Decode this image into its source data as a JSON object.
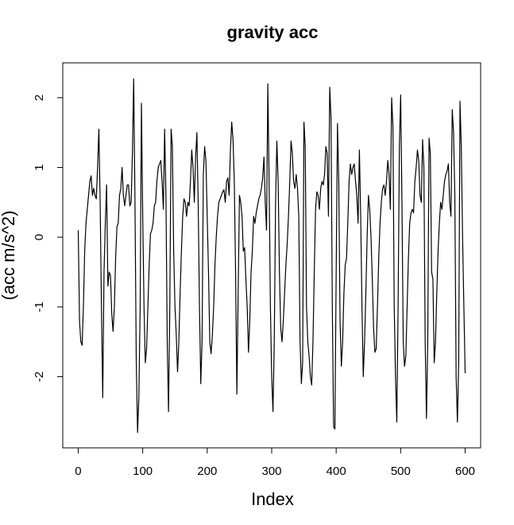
{
  "chart_data": {
    "type": "line",
    "title": "gravity acc",
    "xlabel": "Index",
    "ylabel": "(acc m/s^2)",
    "xlim": [
      -24,
      624
    ],
    "ylim": [
      -3.02,
      2.5
    ],
    "xticks": [
      0,
      100,
      200,
      300,
      400,
      500,
      600
    ],
    "yticks": [
      -2,
      -1,
      0,
      1,
      2
    ],
    "grid": false,
    "legend": "none",
    "line_color": "#000000",
    "series": [
      {
        "x": [
          0,
          2,
          4,
          6,
          8,
          10,
          12,
          15,
          18,
          20,
          22,
          24,
          26,
          28,
          30,
          32,
          34,
          36,
          38,
          40,
          42,
          44,
          46,
          48,
          50,
          52,
          54,
          56,
          58,
          60,
          62,
          64,
          66,
          68,
          70,
          72,
          74,
          76,
          78,
          80,
          82,
          84,
          86,
          88,
          90,
          92,
          94,
          96,
          98,
          100,
          102,
          104,
          106,
          108,
          110,
          112,
          114,
          116,
          118,
          120,
          122,
          124,
          126,
          128,
          130,
          132,
          134,
          136,
          138,
          140,
          142,
          144,
          146,
          148,
          150,
          152,
          154,
          156,
          158,
          160,
          162,
          164,
          166,
          168,
          170,
          172,
          174,
          176,
          178,
          180,
          182,
          184,
          186,
          188,
          190,
          192,
          194,
          196,
          198,
          200,
          202,
          204,
          206,
          208,
          210,
          212,
          214,
          216,
          218,
          220,
          222,
          224,
          226,
          228,
          230,
          232,
          234,
          236,
          238,
          240,
          242,
          244,
          246,
          248,
          250,
          252,
          254,
          256,
          258,
          260,
          262,
          264,
          266,
          268,
          270,
          272,
          274,
          276,
          278,
          280,
          282,
          284,
          286,
          288,
          290,
          292,
          294,
          296,
          298,
          300,
          302,
          304,
          306,
          308,
          310,
          312,
          314,
          316,
          318,
          320,
          322,
          324,
          326,
          328,
          330,
          332,
          334,
          336,
          338,
          340,
          342,
          344,
          346,
          348,
          350,
          352,
          354,
          356,
          358,
          360,
          362,
          364,
          366,
          368,
          370,
          372,
          374,
          376,
          378,
          380,
          382,
          384,
          386,
          388,
          390,
          392,
          394,
          396,
          398,
          400,
          402,
          404,
          406,
          408,
          410,
          412,
          414,
          416,
          418,
          420,
          422,
          424,
          426,
          428,
          430,
          432,
          434,
          436,
          438,
          440,
          442,
          444,
          446,
          448,
          450,
          452,
          454,
          456,
          458,
          460,
          462,
          464,
          466,
          468,
          470,
          472,
          474,
          476,
          478,
          480,
          482,
          484,
          486,
          488,
          490,
          492,
          494,
          496,
          498,
          500,
          502,
          504,
          506,
          508,
          510,
          512,
          514,
          516,
          518,
          520,
          522,
          524,
          526,
          528,
          530,
          532,
          534,
          536,
          538,
          540,
          542,
          544,
          546,
          548,
          550,
          552,
          554,
          556,
          558,
          560,
          562,
          564,
          566,
          568,
          570,
          572,
          574,
          576,
          578,
          580,
          582,
          584,
          586,
          588,
          590,
          592,
          594,
          596,
          598,
          600
        ],
        "y": [
          0.1,
          -1.2,
          -1.5,
          -1.55,
          -1.0,
          -0.2,
          0.2,
          0.5,
          0.8,
          0.88,
          0.6,
          0.7,
          0.6,
          0.55,
          1.0,
          1.55,
          0.5,
          -1.0,
          -2.3,
          -0.5,
          0.2,
          0.75,
          -0.7,
          -0.5,
          -0.55,
          -1.1,
          -1.35,
          -1.0,
          -0.3,
          0.15,
          0.2,
          0.6,
          0.7,
          1.0,
          0.6,
          0.45,
          0.6,
          0.75,
          0.75,
          0.45,
          0.5,
          1.2,
          2.27,
          0.5,
          -1.8,
          -2.8,
          -2.3,
          -1.0,
          1.92,
          0.3,
          -1.0,
          -1.8,
          -1.6,
          -1.0,
          -0.4,
          0.05,
          0.1,
          0.2,
          0.45,
          0.5,
          0.8,
          1.0,
          1.05,
          1.1,
          0.8,
          0.4,
          1.55,
          0.6,
          -1.5,
          -2.5,
          -1.0,
          1.55,
          1.3,
          -0.2,
          -1.0,
          -1.4,
          -1.93,
          -1.5,
          -0.8,
          -0.2,
          0.3,
          0.55,
          0.5,
          0.3,
          0.5,
          0.45,
          0.8,
          1.25,
          1.0,
          0.5,
          1.15,
          1.5,
          0.5,
          -1.0,
          -2.1,
          -1.5,
          0.9,
          1.3,
          1.1,
          0.3,
          -0.5,
          -1.5,
          -1.67,
          -1.4,
          -1.0,
          -0.4,
          0.0,
          0.3,
          0.5,
          0.55,
          0.6,
          0.65,
          0.68,
          0.5,
          0.8,
          0.85,
          0.6,
          1.25,
          1.65,
          1.4,
          0.8,
          -0.5,
          -2.25,
          -0.8,
          0.6,
          0.5,
          0.3,
          -0.2,
          -0.15,
          -0.6,
          -1.0,
          -1.65,
          -1.2,
          -0.5,
          -0.2,
          0.3,
          0.2,
          0.35,
          0.45,
          0.55,
          0.6,
          0.7,
          0.85,
          1.15,
          0.5,
          0.1,
          2.2,
          0.8,
          -1.0,
          -2.0,
          -2.5,
          -1.5,
          0.5,
          1.38,
          0.8,
          -0.5,
          -1.3,
          -1.5,
          -1.2,
          -0.8,
          -0.4,
          -0.1,
          0.3,
          0.8,
          1.38,
          1.2,
          0.8,
          0.7,
          0.9,
          0.7,
          0.3,
          -1.5,
          -2.1,
          -1.8,
          1.65,
          1.3,
          -1.0,
          -1.5,
          -1.7,
          -2.0,
          -2.12,
          -1.5,
          -0.5,
          0.4,
          0.65,
          0.6,
          0.4,
          0.7,
          0.8,
          0.75,
          0.9,
          1.3,
          1.2,
          0.3,
          2.15,
          1.7,
          -1.0,
          -2.72,
          -2.75,
          -0.5,
          1.63,
          0.8,
          -1.2,
          -1.85,
          -1.5,
          -0.8,
          -0.4,
          -0.3,
          0.2,
          0.8,
          1.05,
          0.9,
          1.0,
          1.05,
          0.8,
          0.6,
          0.2,
          1.25,
          0.3,
          -1.0,
          -2.0,
          -1.5,
          -0.8,
          0.0,
          0.6,
          0.4,
          0.0,
          -0.6,
          -1.3,
          -1.65,
          -1.6,
          -1.0,
          -0.3,
          0.2,
          0.5,
          0.7,
          0.75,
          0.6,
          0.8,
          1.1,
          0.9,
          0.4,
          2.0,
          1.6,
          -1.0,
          -2.0,
          -2.65,
          -1.0,
          1.3,
          2.04,
          0.5,
          -1.5,
          -1.85,
          -1.7,
          -1.0,
          -0.3,
          0.2,
          0.35,
          0.4,
          0.35,
          0.8,
          1.0,
          1.25,
          1.1,
          0.6,
          0.5,
          1.4,
          1.0,
          -1.5,
          -2.6,
          -1.5,
          1.42,
          1.2,
          -0.5,
          -0.6,
          -1.8,
          -1.5,
          -0.8,
          -0.2,
          0.2,
          0.5,
          0.4,
          0.6,
          0.8,
          0.9,
          0.95,
          1.05,
          0.5,
          0.3,
          1.83,
          1.5,
          0.6,
          -2.0,
          -2.65,
          -1.8,
          1.95,
          1.3,
          0.0,
          -1.0,
          -1.95
        ]
      }
    ]
  }
}
